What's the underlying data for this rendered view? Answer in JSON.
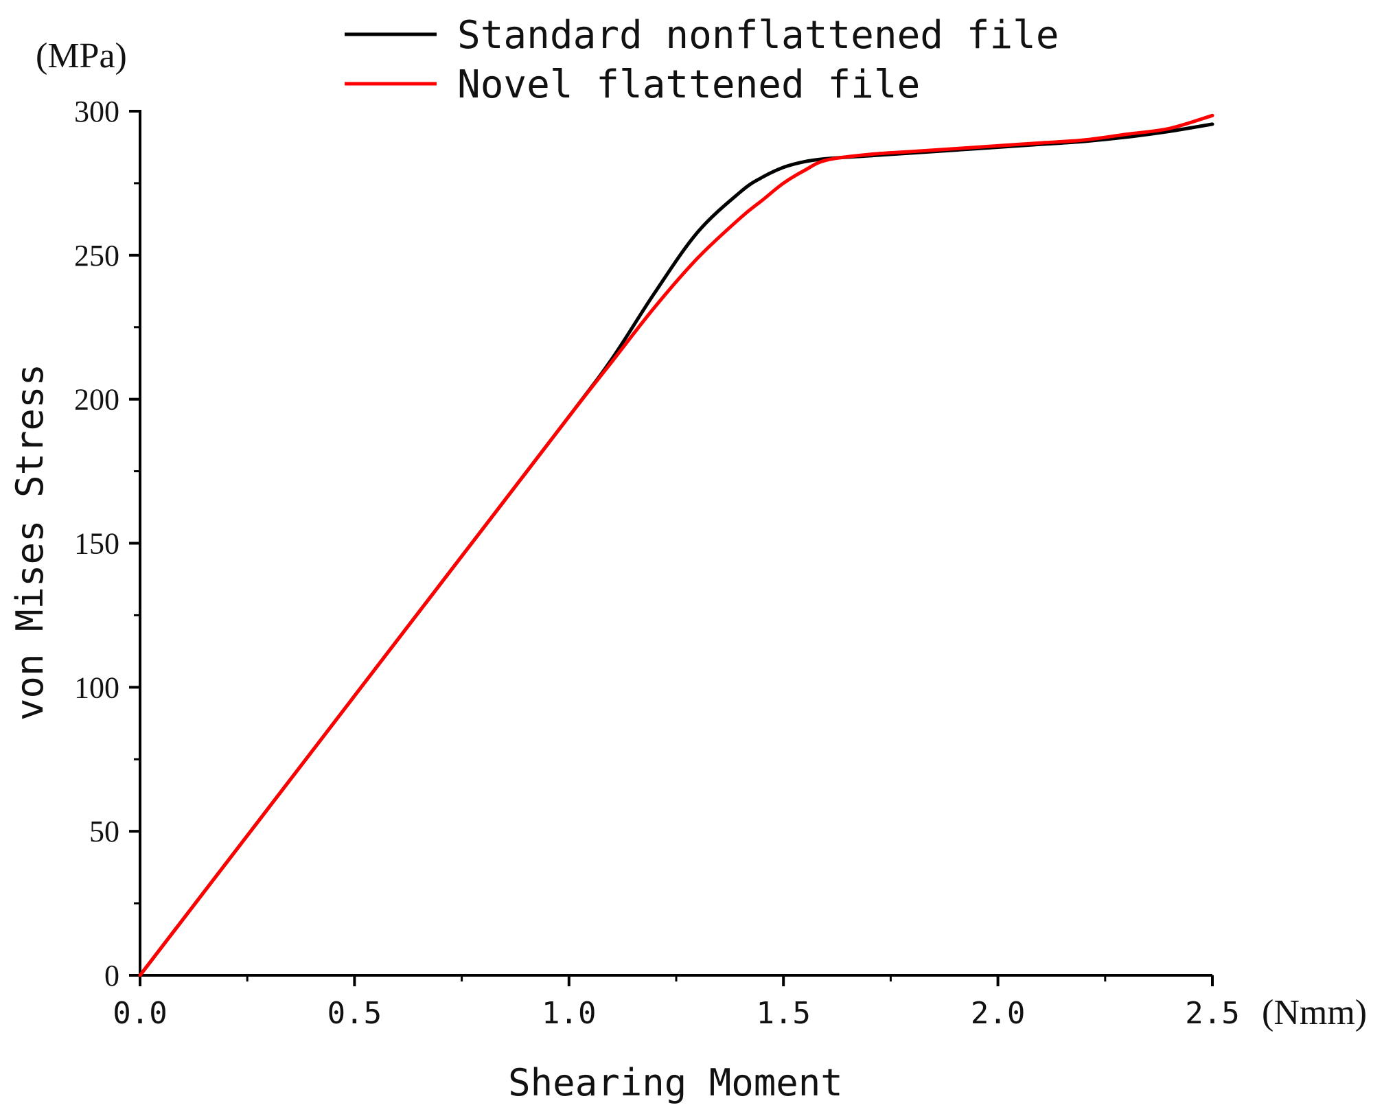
{
  "chart_data": {
    "type": "line",
    "xlabel": "Shearing Moment",
    "ylabel": "von Mises Stress",
    "x_unit": "(Nmm)",
    "y_unit": "(MPa)",
    "xlim": [
      0,
      2.5
    ],
    "ylim": [
      0,
      300
    ],
    "x_ticks": [
      "0.0",
      "0.5",
      "1.0",
      "1.5",
      "2.0",
      "2.5"
    ],
    "y_ticks": [
      "0",
      "50",
      "100",
      "150",
      "200",
      "250",
      "300"
    ],
    "grid": false,
    "legend_position": "top-center",
    "series": [
      {
        "name": "Standard nonflattened file",
        "color": "#000000",
        "x": [
          0,
          0.25,
          0.5,
          0.75,
          1.0,
          1.1,
          1.2,
          1.3,
          1.4,
          1.45,
          1.5,
          1.55,
          1.6,
          1.7,
          1.8,
          1.9,
          2.0,
          2.1,
          2.2,
          2.3,
          2.4,
          2.5
        ],
        "y": [
          0,
          48.5,
          97,
          145.5,
          194,
          214,
          237,
          258,
          272,
          277,
          280.5,
          282.5,
          283.5,
          284.5,
          285.5,
          286.5,
          287.5,
          288.5,
          289.5,
          291,
          293,
          295.5
        ]
      },
      {
        "name": "Novel flattened file",
        "color": "#ff0000",
        "x": [
          0,
          0.25,
          0.5,
          0.75,
          1.0,
          1.1,
          1.2,
          1.3,
          1.4,
          1.45,
          1.5,
          1.55,
          1.6,
          1.7,
          1.8,
          1.9,
          2.0,
          2.1,
          2.2,
          2.3,
          2.4,
          2.5
        ],
        "y": [
          0,
          48.5,
          97,
          145.5,
          194,
          213,
          232,
          249,
          263,
          269,
          275,
          279.5,
          283,
          285,
          286,
          287,
          288,
          289,
          290,
          292,
          294,
          298.5
        ]
      }
    ]
  }
}
